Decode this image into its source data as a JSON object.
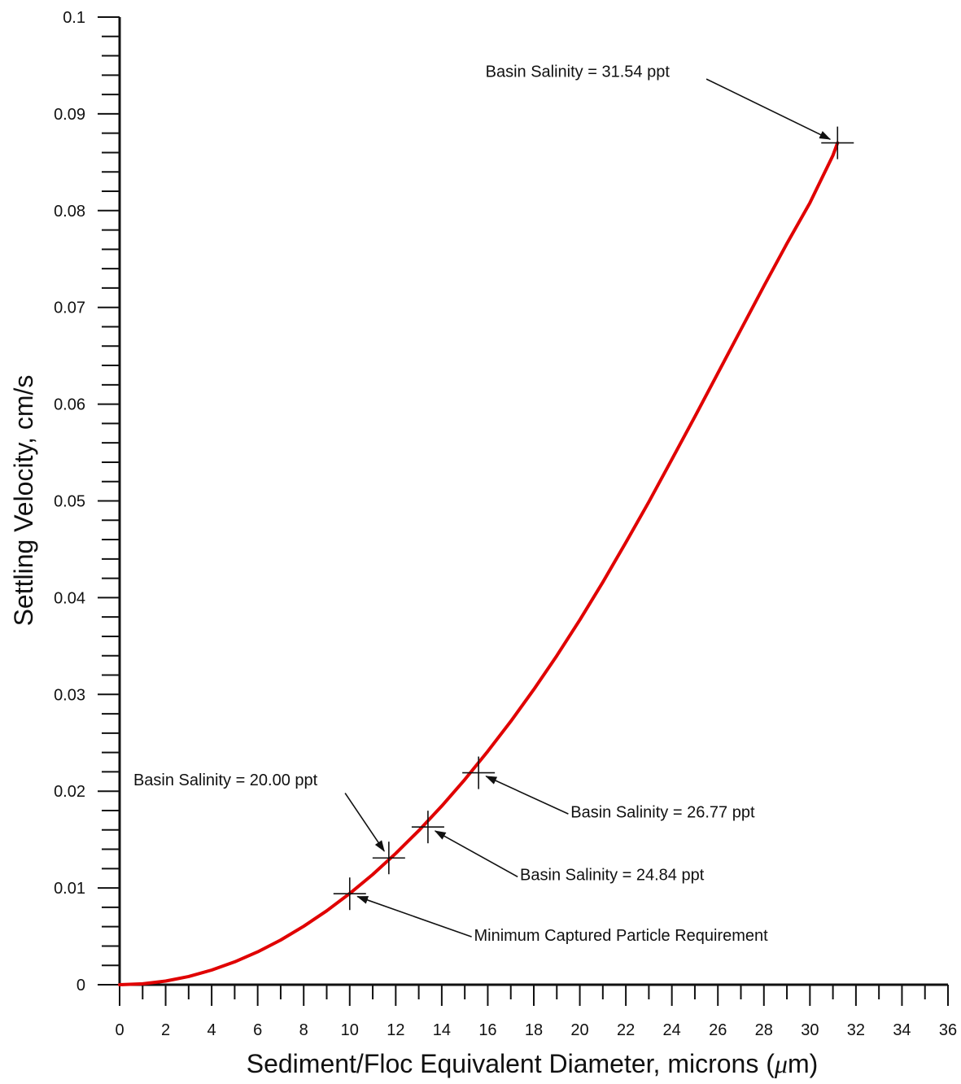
{
  "chart_data": {
    "type": "line",
    "title": "",
    "xlabel": "Sediment/Floc Equivalent Diameter, microns (μm)",
    "xlabel_parts": [
      "Sediment/Floc Equivalent Diameter, microns (",
      "μ",
      "m)"
    ],
    "ylabel": "Settling Velocity, cm/s",
    "xlim": [
      0,
      36
    ],
    "ylim": [
      0,
      0.1
    ],
    "x_ticks": [
      "0",
      "2",
      "4",
      "6",
      "8",
      "10",
      "12",
      "14",
      "16",
      "18",
      "20",
      "22",
      "24",
      "26",
      "28",
      "30",
      "32",
      "34",
      "36"
    ],
    "y_ticks": [
      "0",
      "0.01",
      "0.02",
      "0.03",
      "0.04",
      "0.05",
      "0.06",
      "0.07",
      "0.08",
      "0.09",
      "0.1"
    ],
    "grid": false,
    "legend": "none",
    "series": [
      {
        "color": "#e00000",
        "x": [
          0,
          1,
          2,
          3,
          4,
          5,
          6,
          7,
          8,
          9,
          10,
          11,
          12,
          13,
          14,
          15,
          16,
          17,
          18,
          19,
          20,
          21,
          22,
          23,
          24,
          25,
          26,
          27,
          28,
          29,
          30,
          31,
          31.2
        ],
        "y": [
          0,
          9e-05,
          0.00038,
          0.00085,
          0.00151,
          0.00236,
          0.0034,
          0.00462,
          0.00604,
          0.00764,
          0.00943,
          0.0114,
          0.01357,
          0.01592,
          0.01847,
          0.0212,
          0.02412,
          0.02722,
          0.03051,
          0.034,
          0.0377,
          0.0416,
          0.0457,
          0.0499,
          0.0543,
          0.0587,
          0.0632,
          0.0677,
          0.0722,
          0.0766,
          0.0808,
          0.0857,
          0.087
        ]
      }
    ],
    "markers": [
      {
        "x": 10.0,
        "y": 0.0094
      },
      {
        "x": 11.7,
        "y": 0.0131
      },
      {
        "x": 13.4,
        "y": 0.0163
      },
      {
        "x": 15.6,
        "y": 0.0219
      },
      {
        "x": 31.2,
        "y": 0.087
      }
    ],
    "annotations": [
      {
        "text": "Minimum Captured Particle Requirement",
        "marker": 0,
        "label_x": 15.4,
        "label_y": 0.00455,
        "anchor": "start"
      },
      {
        "text": "Basin Salinity = 20.00 ppt",
        "marker": 1,
        "label_x": 0.6,
        "label_y": 0.0206,
        "anchor": "start"
      },
      {
        "text": "Basin Salinity = 24.84 ppt",
        "marker": 2,
        "label_x": 17.4,
        "label_y": 0.0108,
        "anchor": "start"
      },
      {
        "text": "Basin Salinity = 26.77 ppt",
        "marker": 3,
        "label_x": 19.6,
        "label_y": 0.0173,
        "anchor": "start"
      },
      {
        "text": "Basin Salinity = 31.54 ppt",
        "marker": 4,
        "label_x": 15.9,
        "label_y": 0.0938,
        "anchor": "start"
      }
    ],
    "arrow_tails": [
      {
        "x": 15.3,
        "y": 0.00495
      },
      {
        "x": 9.8,
        "y": 0.0198
      },
      {
        "x": 17.3,
        "y": 0.01115
      },
      {
        "x": 19.5,
        "y": 0.01765
      },
      {
        "x": 25.5,
        "y": 0.0936
      }
    ]
  }
}
